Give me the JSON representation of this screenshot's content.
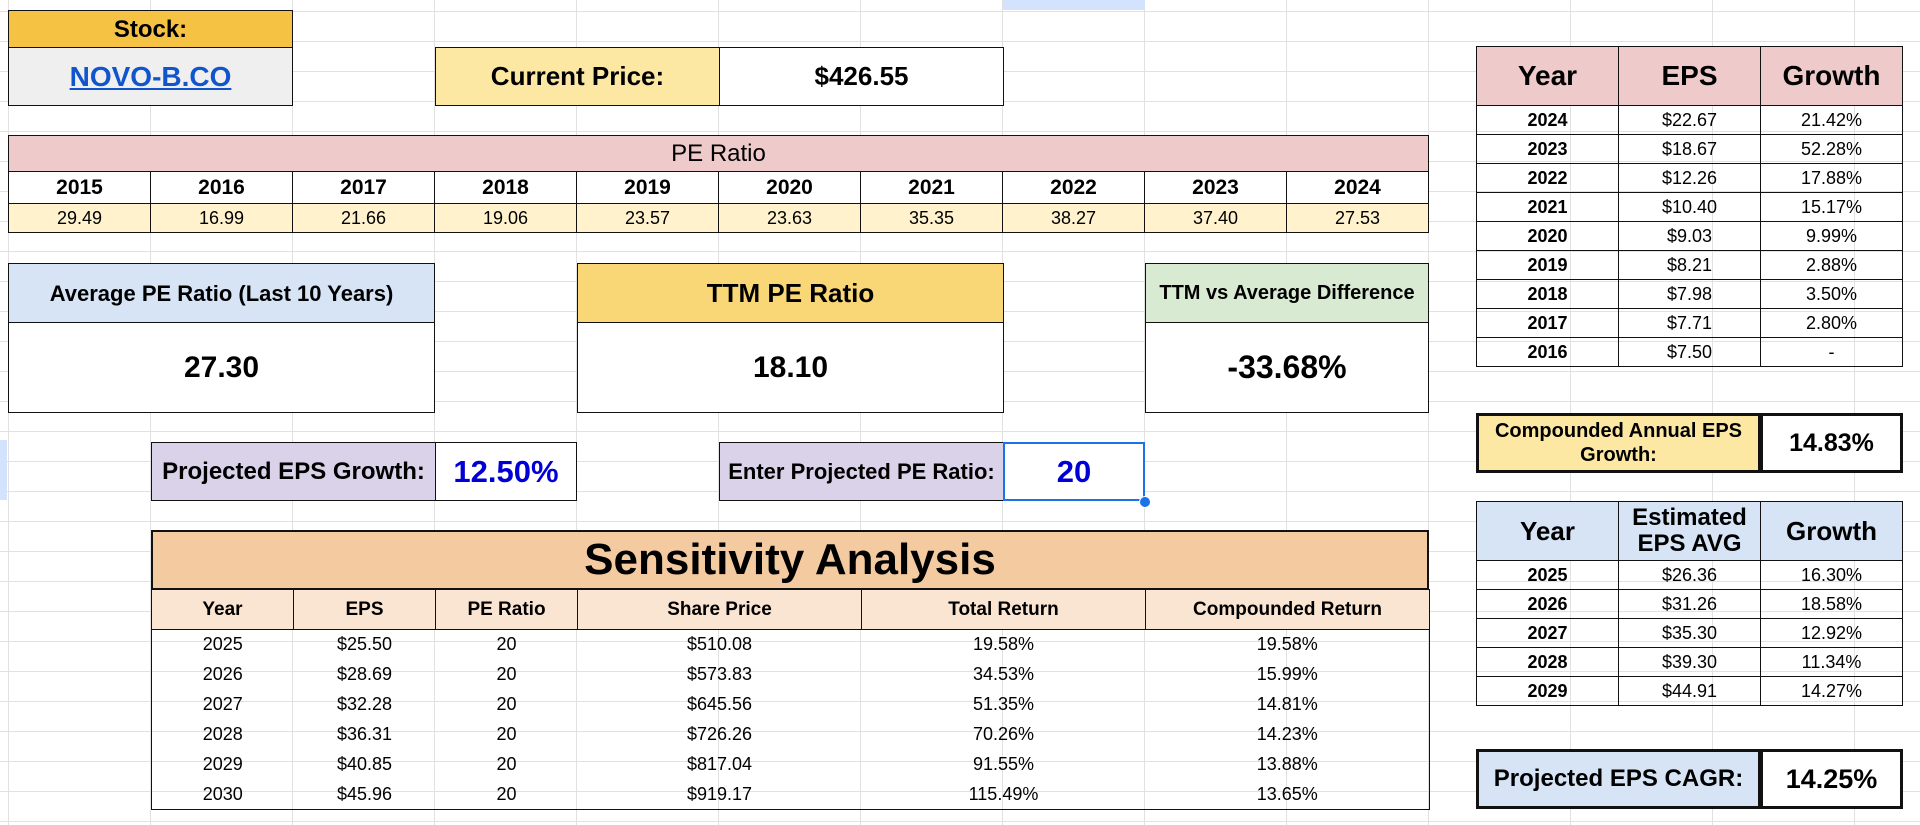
{
  "stock": {
    "label": "Stock:",
    "ticker": "NOVO-B.CO"
  },
  "price": {
    "label": "Current Price:",
    "value": "$426.55"
  },
  "pe_history": {
    "title": "PE Ratio",
    "years": [
      "2015",
      "2016",
      "2017",
      "2018",
      "2019",
      "2020",
      "2021",
      "2022",
      "2023",
      "2024"
    ],
    "values": [
      "29.49",
      "16.99",
      "21.66",
      "19.06",
      "23.57",
      "23.63",
      "35.35",
      "38.27",
      "37.40",
      "27.53"
    ]
  },
  "summary": {
    "avg_label": "Average PE Ratio (Last 10 Years)",
    "avg_value": "27.30",
    "ttm_label": "TTM PE Ratio",
    "ttm_value": "18.10",
    "diff_label": "TTM vs Average Difference",
    "diff_value": "-33.68%"
  },
  "inputs": {
    "growth_label": "Projected EPS Growth:",
    "growth_value": "12.50%",
    "pe_label": "Enter Projected PE Ratio:",
    "pe_value": "20"
  },
  "sensitivity": {
    "title": "Sensitivity Analysis",
    "headers": [
      "Year",
      "EPS",
      "PE Ratio",
      "Share Price",
      "Total Return",
      "Compounded Return"
    ],
    "rows": [
      [
        "2025",
        "$25.50",
        "20",
        "$510.08",
        "19.58%",
        "19.58%"
      ],
      [
        "2026",
        "$28.69",
        "20",
        "$573.83",
        "34.53%",
        "15.99%"
      ],
      [
        "2027",
        "$32.28",
        "20",
        "$645.56",
        "51.35%",
        "14.81%"
      ],
      [
        "2028",
        "$36.31",
        "20",
        "$726.26",
        "70.26%",
        "14.23%"
      ],
      [
        "2029",
        "$40.85",
        "20",
        "$817.04",
        "91.55%",
        "13.88%"
      ],
      [
        "2030",
        "$45.96",
        "20",
        "$919.17",
        "115.49%",
        "13.65%"
      ]
    ]
  },
  "eps_history": {
    "headers": [
      "Year",
      "EPS",
      "Growth"
    ],
    "rows": [
      [
        "2024",
        "$22.67",
        "21.42%"
      ],
      [
        "2023",
        "$18.67",
        "52.28%"
      ],
      [
        "2022",
        "$12.26",
        "17.88%"
      ],
      [
        "2021",
        "$10.40",
        "15.17%"
      ],
      [
        "2020",
        "$9.03",
        "9.99%"
      ],
      [
        "2019",
        "$8.21",
        "2.88%"
      ],
      [
        "2018",
        "$7.98",
        "3.50%"
      ],
      [
        "2017",
        "$7.71",
        "2.80%"
      ],
      [
        "2016",
        "$7.50",
        "-"
      ]
    ]
  },
  "cagr": {
    "label": "Compounded Annual EPS Growth:",
    "value": "14.83%"
  },
  "eps_estimates": {
    "headers": [
      "Year",
      "Estimated EPS AVG",
      "Growth"
    ],
    "rows": [
      [
        "2025",
        "$26.36",
        "16.30%"
      ],
      [
        "2026",
        "$31.26",
        "18.58%"
      ],
      [
        "2027",
        "$35.30",
        "12.92%"
      ],
      [
        "2028",
        "$39.30",
        "11.34%"
      ],
      [
        "2029",
        "$44.91",
        "14.27%"
      ]
    ]
  },
  "projected_cagr": {
    "label": "Projected EPS CAGR:",
    "value": "14.25%"
  },
  "colors": {
    "stock_header": "#f6c244",
    "yellow_box": "#fce8a2",
    "pe_title": "#efcaca",
    "pe_values": "#fff2cc",
    "avg_header": "#d6e4f5",
    "ttm_header": "#f9d776",
    "diff_header": "#d9ead3",
    "purple": "#d9d2e9",
    "input_blue": "#0000d6",
    "sens_title": "#f4cba0",
    "sens_header": "#fae5d3",
    "eps_header": "#efcaca",
    "est_header": "#d6e4f5"
  }
}
